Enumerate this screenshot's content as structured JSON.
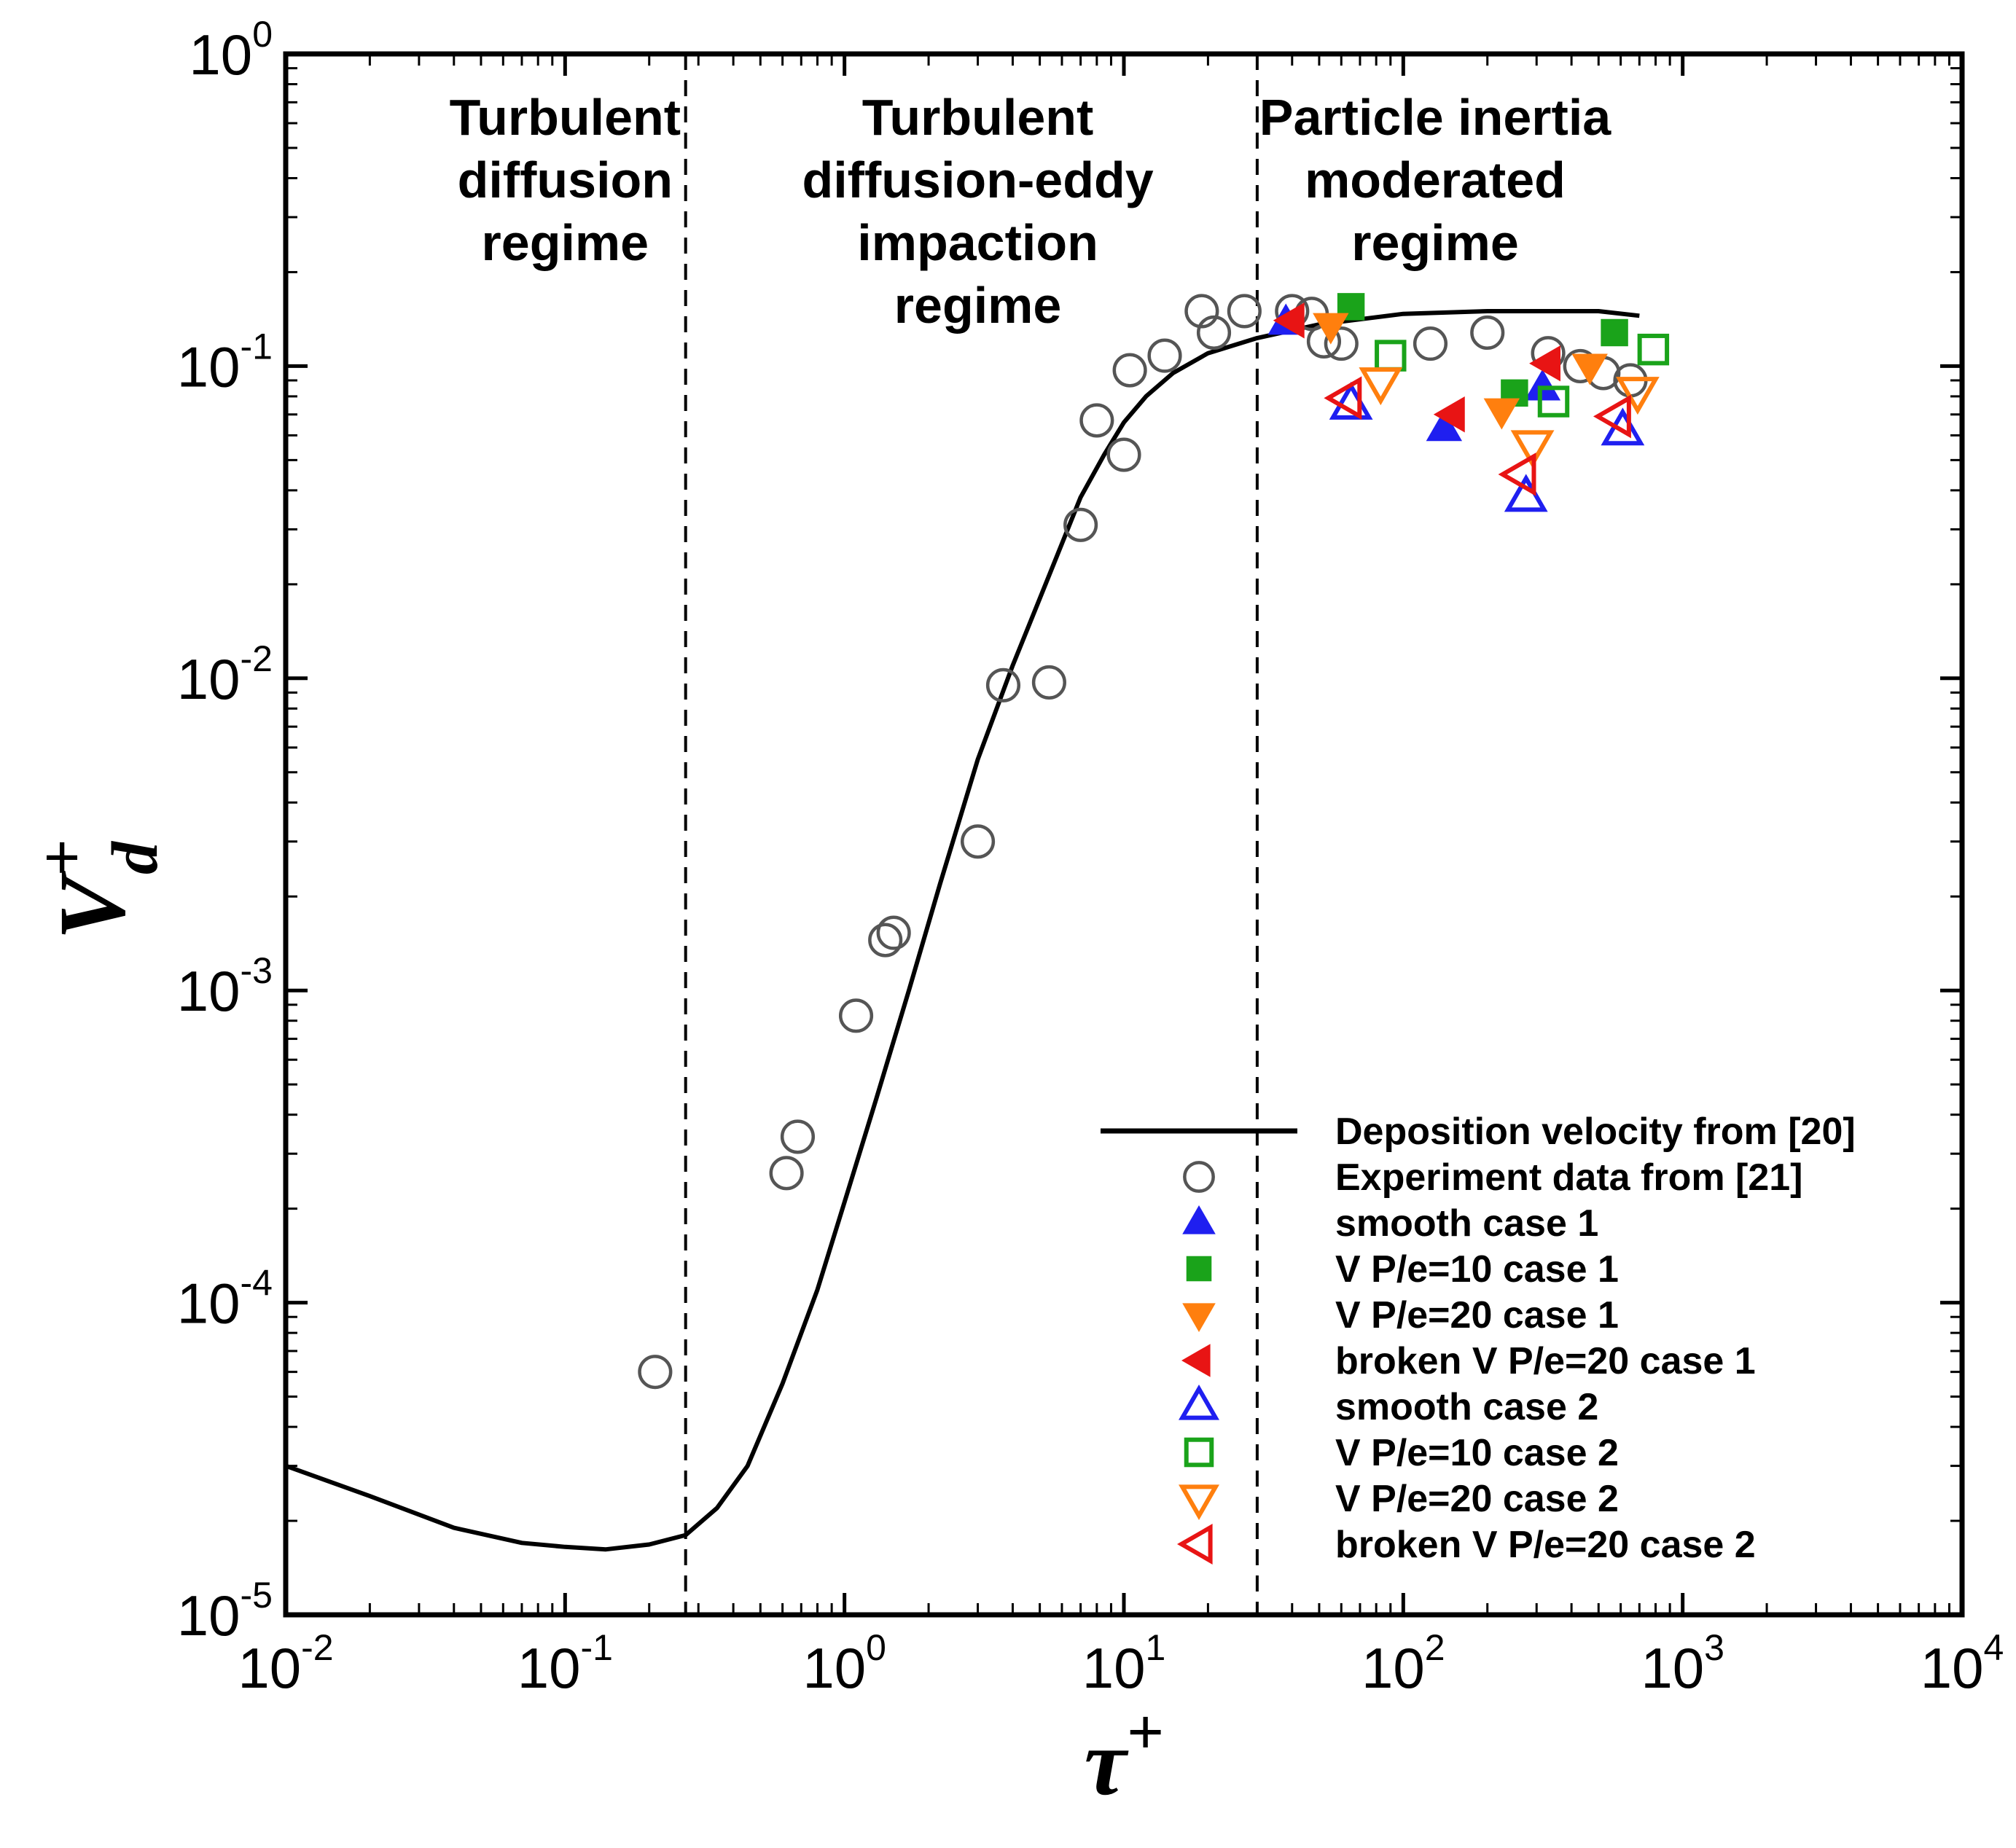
{
  "chart_data": {
    "type": "scatter",
    "xscale": "log",
    "yscale": "log",
    "xlim": [
      0.01,
      10000
    ],
    "ylim": [
      1e-05,
      1
    ],
    "x_ticks": [
      {
        "base": "10",
        "exp": "-2"
      },
      {
        "base": "10",
        "exp": "-1"
      },
      {
        "base": "10",
        "exp": "0"
      },
      {
        "base": "10",
        "exp": "1"
      },
      {
        "base": "10",
        "exp": "2"
      },
      {
        "base": "10",
        "exp": "3"
      },
      {
        "base": "10",
        "exp": "4"
      }
    ],
    "y_ticks": [
      {
        "base": "10",
        "exp": "-5"
      },
      {
        "base": "10",
        "exp": "-4"
      },
      {
        "base": "10",
        "exp": "-3"
      },
      {
        "base": "10",
        "exp": "-2"
      },
      {
        "base": "10",
        "exp": "-1"
      },
      {
        "base": "10",
        "exp": "0"
      }
    ],
    "xlabel": {
      "main": "τ",
      "sup": "+"
    },
    "ylabel": {
      "main": "V",
      "sup": "+",
      "sub": "d"
    },
    "regime_boundaries": [
      0.27,
      30
    ],
    "regimes": [
      {
        "lines": [
          "Turbulent",
          "diffusion",
          "regime"
        ],
        "x": 0.1
      },
      {
        "lines": [
          "Turbulent",
          "diffusion-eddy",
          "impaction",
          "regime"
        ],
        "x": 3.0
      },
      {
        "lines": [
          "Particle inertia",
          "moderated",
          "regime"
        ],
        "x": 130
      }
    ],
    "series": [
      {
        "name": "Deposition velocity from [20]",
        "kind": "line",
        "color": "#000000",
        "x": [
          0.01,
          0.02,
          0.04,
          0.07,
          0.1,
          0.14,
          0.2,
          0.27,
          0.35,
          0.45,
          0.6,
          0.8,
          1.0,
          1.3,
          1.7,
          2.2,
          3.0,
          4.0,
          5.0,
          6.0,
          7.0,
          8.5,
          10,
          12,
          15,
          20,
          30,
          50,
          100,
          200,
          500,
          700
        ],
        "y": [
          3e-05,
          2.4e-05,
          1.9e-05,
          1.7e-05,
          1.65e-05,
          1.62e-05,
          1.68e-05,
          1.8e-05,
          2.2e-05,
          3e-05,
          5.5e-05,
          0.00011,
          0.00021,
          0.00045,
          0.001,
          0.0022,
          0.0055,
          0.011,
          0.018,
          0.027,
          0.038,
          0.052,
          0.066,
          0.08,
          0.095,
          0.11,
          0.123,
          0.136,
          0.147,
          0.15,
          0.15,
          0.145
        ]
      },
      {
        "name": "Experiment data from [21]",
        "kind": "open-circle",
        "color": "#555555",
        "x": [
          0.21,
          0.62,
          0.68,
          1.1,
          1.4,
          1.5,
          3.0,
          3.7,
          5.4,
          7.0,
          8.0,
          10,
          10.5,
          14,
          19,
          21,
          27,
          40,
          47,
          52,
          60,
          125,
          200,
          330,
          430,
          520,
          650
        ],
        "y": [
          6e-05,
          0.00026,
          0.00034,
          0.00083,
          0.00145,
          0.00153,
          0.003,
          0.0095,
          0.0097,
          0.031,
          0.067,
          0.052,
          0.097,
          0.108,
          0.15,
          0.128,
          0.15,
          0.15,
          0.147,
          0.12,
          0.118,
          0.118,
          0.128,
          0.11,
          0.1,
          0.095,
          0.09
        ]
      },
      {
        "name": "smooth case 1",
        "kind": "filled-triangle-up",
        "color": "#1F1FF0",
        "x": [
          38,
          140,
          315
        ],
        "y": [
          0.138,
          0.063,
          0.085
        ]
      },
      {
        "name": "V P/e=10 case 1",
        "kind": "filled-square",
        "color": "#1AA31A",
        "x": [
          65,
          250,
          570
        ],
        "y": [
          0.155,
          0.082,
          0.128
        ]
      },
      {
        "name": "V P/e=20 case 1",
        "kind": "filled-triangle-down",
        "color": "#FF7F0E",
        "x": [
          55,
          225,
          465
        ],
        "y": [
          0.135,
          0.072,
          0.1
        ]
      },
      {
        "name": "broken V P/e=20 case 1",
        "kind": "filled-triangle-left",
        "color": "#E81414",
        "x": [
          40,
          150,
          330
        ],
        "y": [
          0.14,
          0.07,
          0.102
        ]
      },
      {
        "name": "smooth case 2",
        "kind": "open-triangle-up",
        "color": "#1F1FF0",
        "x": [
          65,
          275,
          610
        ],
        "y": [
          0.075,
          0.038,
          0.062
        ]
      },
      {
        "name": "V P/e=10 case 2",
        "kind": "open-square",
        "color": "#1AA31A",
        "x": [
          90,
          345,
          785
        ],
        "y": [
          0.108,
          0.077,
          0.113
        ]
      },
      {
        "name": "V P/e=20 case 2",
        "kind": "open-triangle-down",
        "color": "#FF7F0E",
        "x": [
          83,
          290,
          690
        ],
        "y": [
          0.089,
          0.056,
          0.083
        ]
      },
      {
        "name": "broken V P/e=20 case 2",
        "kind": "open-triangle-left",
        "color": "#E81414",
        "x": [
          63,
          265,
          580
        ],
        "y": [
          0.079,
          0.045,
          0.069
        ]
      }
    ],
    "legend_location": "bottom-right"
  }
}
